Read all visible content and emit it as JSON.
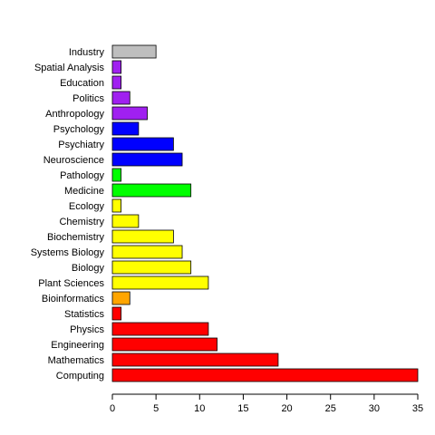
{
  "chart_data": {
    "type": "bar",
    "orientation": "horizontal",
    "title": "",
    "xlabel": "",
    "ylabel": "",
    "xlim": [
      0,
      35
    ],
    "xticks": [
      0,
      5,
      10,
      15,
      20,
      25,
      30,
      35
    ],
    "grid": false,
    "legend": "none",
    "bars": [
      {
        "label": "Industry",
        "value": 5,
        "color": "#bebebe"
      },
      {
        "label": "Spatial Analysis",
        "value": 1,
        "color": "#a020f0"
      },
      {
        "label": "Education",
        "value": 1,
        "color": "#a020f0"
      },
      {
        "label": "Politics",
        "value": 2,
        "color": "#a020f0"
      },
      {
        "label": "Anthropology",
        "value": 4,
        "color": "#a020f0"
      },
      {
        "label": "Psychology",
        "value": 3,
        "color": "#0000ff"
      },
      {
        "label": "Psychiatry",
        "value": 7,
        "color": "#0000ff"
      },
      {
        "label": "Neuroscience",
        "value": 8,
        "color": "#0000ff"
      },
      {
        "label": "Pathology",
        "value": 1,
        "color": "#00ff00"
      },
      {
        "label": "Medicine",
        "value": 9,
        "color": "#00ff00"
      },
      {
        "label": "Ecology",
        "value": 1,
        "color": "#ffff00"
      },
      {
        "label": "Chemistry",
        "value": 3,
        "color": "#ffff00"
      },
      {
        "label": "Biochemistry",
        "value": 7,
        "color": "#ffff00"
      },
      {
        "label": "Systems Biology",
        "value": 8,
        "color": "#ffff00"
      },
      {
        "label": "Biology",
        "value": 9,
        "color": "#ffff00"
      },
      {
        "label": "Plant Sciences",
        "value": 11,
        "color": "#ffff00"
      },
      {
        "label": "Bioinformatics",
        "value": 2,
        "color": "#ffa500"
      },
      {
        "label": "Statistics",
        "value": 1,
        "color": "#ff0000"
      },
      {
        "label": "Physics",
        "value": 11,
        "color": "#ff0000"
      },
      {
        "label": "Engineering",
        "value": 12,
        "color": "#ff0000"
      },
      {
        "label": "Mathematics",
        "value": 19,
        "color": "#ff0000"
      },
      {
        "label": "Computing",
        "value": 35,
        "color": "#ff0000"
      }
    ]
  }
}
